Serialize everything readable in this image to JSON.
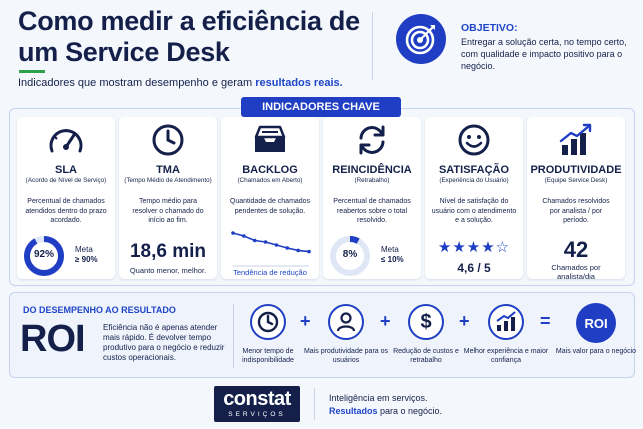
{
  "header": {
    "title": "Como medir a eficiência de um Service Desk",
    "subtitle_prefix": "Indicadores que mostram desempenho e geram ",
    "subtitle_highlight": "resultados reais.",
    "objective_label": "OBJETIVO:",
    "objective_text": "Entregar a solução certa, no tempo certo, com qualidade e impacto positivo para o negócio.",
    "objective_icon": "target-icon"
  },
  "indicators": {
    "banner": "INDICADORES CHAVE",
    "cards": [
      {
        "title": "SLA",
        "subtitle": "(Acordo de Nível de Serviço)",
        "description": "Percentual de chamados atendidos dentro do prazo acordado.",
        "value": "92%",
        "value_fraction": 0.92,
        "meta_label": "Meta",
        "meta_value": "≥ 90%",
        "icon": "speedometer-icon"
      },
      {
        "title": "TMA",
        "subtitle": "(Tempo Médio de Atendimento)",
        "description": "Tempo médio para resolver o chamado do início ao fim.",
        "value": "18,6 min",
        "note": "Quanto menor, melhor.",
        "icon": "clock-icon"
      },
      {
        "title": "BACKLOG",
        "subtitle": "(Chamados em Aberto)",
        "description": "Quantidade de chamados pendentes de solução.",
        "trend_label": "Tendência de redução",
        "trend_values": [
          10,
          9,
          7.5,
          7,
          6,
          5,
          4.2,
          3.8
        ],
        "icon": "inbox-tray-icon"
      },
      {
        "title": "REINCIDÊNCIA",
        "subtitle": "(Retrabalho)",
        "description": "Percentual de chamados reabertos sobre o total resolvido.",
        "value": "8%",
        "value_fraction": 0.08,
        "meta_label": "Meta",
        "meta_value": "≤ 10%",
        "icon": "refresh-cycle-icon"
      },
      {
        "title": "SATISFAÇÃO",
        "subtitle": "(Experiência do Usuário)",
        "description": "Nível de satisfação do usuário com o atendimento e a solução.",
        "rating": 4.6,
        "rating_text": "4,6 / 5",
        "stars_filled": 4,
        "stars_total": 5,
        "icon": "smiley-face-icon"
      },
      {
        "title": "PRODUTIVIDADE",
        "subtitle": "(Equipe Service Desk)",
        "description": "Chamados resolvidos por analista / por período.",
        "value": "42",
        "note": "Chamados por analista/dia",
        "icon": "bar-chart-growth-icon"
      }
    ]
  },
  "roi": {
    "heading": "DO DESEMPENHO AO RESULTADO",
    "word": "ROI",
    "text": "Eficiência não é apenas atender mais rápido. É devolver tempo produtivo para o negócio e reduzir custos operacionais.",
    "steps": [
      {
        "label": "Menor tempo de indisponibilidade",
        "icon": "clock-icon"
      },
      {
        "label": "Mais produtividade para os usuários",
        "icon": "user-icon"
      },
      {
        "label": "Redução de custos e retrabalho",
        "icon": "dollar-icon"
      },
      {
        "label": "Melhor experiência e maior confiança",
        "icon": "growth-chart-icon"
      }
    ],
    "result_circle": "ROI",
    "result_label": "Mais valor para o negócio"
  },
  "footer": {
    "logo_name": "constat",
    "logo_sub": "SERVIÇOS",
    "line1": "Inteligência em serviços.",
    "line2_highlight": "Resultados",
    "line2_rest": " para o negócio."
  },
  "colors": {
    "navy": "#14204a",
    "accent_blue": "#1f3ec3",
    "link_blue": "#1f46c8",
    "green": "#2da04a"
  }
}
